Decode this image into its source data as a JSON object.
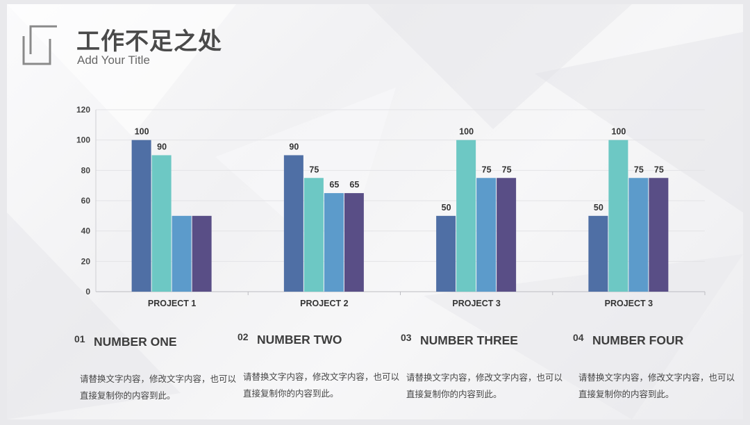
{
  "header": {
    "title": "工作不足之处",
    "subtitle": "Add Your Title"
  },
  "colors": {
    "series": [
      "#4f6fa5",
      "#6dc8c4",
      "#5c9bcb",
      "#594e86"
    ],
    "title": "#4a4a4a",
    "logo": "#8a8a8a"
  },
  "chart_data": {
    "type": "bar",
    "categories": [
      "PROJECT 1",
      "PROJECT 2",
      "PROJECT 3",
      "PROJECT 3"
    ],
    "series": [
      {
        "values": [
          100,
          90,
          50,
          50
        ]
      },
      {
        "values": [
          90,
          75,
          100,
          100
        ]
      },
      {
        "values": [
          50,
          65,
          75,
          75
        ]
      },
      {
        "values": [
          50,
          65,
          75,
          75
        ]
      }
    ],
    "ylim": [
      0,
      120
    ],
    "yticks": [
      0,
      20,
      40,
      60,
      80,
      100,
      120
    ],
    "grid": true,
    "legend": "none",
    "data_labels": true,
    "hidden_labels": [
      [
        2,
        0
      ],
      [
        3,
        0
      ]
    ]
  },
  "notes": [
    {
      "num": "01",
      "title": "NUMBER ONE",
      "text": "请替换文字内容，修改文字内容，也可以直接复制你的内容到此。"
    },
    {
      "num": "02",
      "title": "NUMBER TWO",
      "text": "请替换文字内容，修改文字内容，也可以直接复制你的内容到此。"
    },
    {
      "num": "03",
      "title": "NUMBER THREE",
      "text": "请替换文字内容，修改文字内容，也可以直接复制你的内容到此。"
    },
    {
      "num": "04",
      "title": "NUMBER FOUR",
      "text": "请替换文字内容，修改文字内容，也可以直接复制你的内容到此。"
    }
  ]
}
